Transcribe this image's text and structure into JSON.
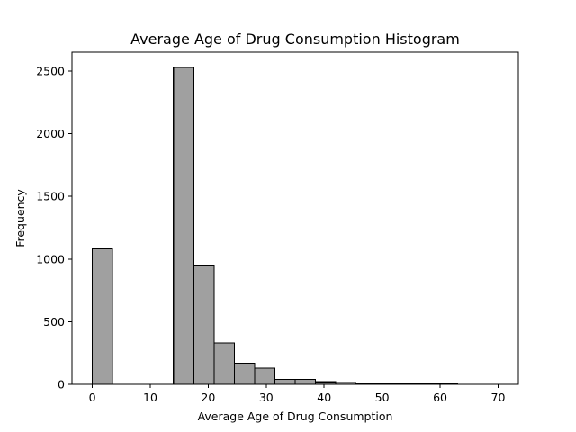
{
  "chart_data": {
    "type": "bar",
    "title": "Average Age of Drug Consumption Histogram",
    "xlabel": "Average Age of Drug Consumption",
    "ylabel": "Frequency",
    "xlim": [
      -3.5,
      73.5
    ],
    "ylim": [
      0,
      2650
    ],
    "x_ticks": [
      0,
      10,
      20,
      30,
      40,
      50,
      60,
      70
    ],
    "y_ticks": [
      0,
      500,
      1000,
      1500,
      2000,
      2500
    ],
    "bar_color": "#a0a0a0",
    "edge_color": "#000000",
    "bins": [
      {
        "start": 0.0,
        "end": 3.5,
        "value": 1080
      },
      {
        "start": 3.5,
        "end": 7.0,
        "value": 0
      },
      {
        "start": 7.0,
        "end": 10.5,
        "value": 0
      },
      {
        "start": 10.5,
        "end": 14.0,
        "value": 0
      },
      {
        "start": 14.0,
        "end": 17.5,
        "value": 2530
      },
      {
        "start": 17.5,
        "end": 21.0,
        "value": 950
      },
      {
        "start": 21.0,
        "end": 24.5,
        "value": 330
      },
      {
        "start": 24.5,
        "end": 28.0,
        "value": 170
      },
      {
        "start": 28.0,
        "end": 31.5,
        "value": 130
      },
      {
        "start": 31.5,
        "end": 35.0,
        "value": 40
      },
      {
        "start": 35.0,
        "end": 38.5,
        "value": 40
      },
      {
        "start": 38.5,
        "end": 42.0,
        "value": 20
      },
      {
        "start": 42.0,
        "end": 45.5,
        "value": 15
      },
      {
        "start": 45.5,
        "end": 49.0,
        "value": 8
      },
      {
        "start": 49.0,
        "end": 52.5,
        "value": 6
      },
      {
        "start": 52.5,
        "end": 56.0,
        "value": 4
      },
      {
        "start": 56.0,
        "end": 59.5,
        "value": 2
      },
      {
        "start": 59.5,
        "end": 63.0,
        "value": 6
      },
      {
        "start": 63.0,
        "end": 66.5,
        "value": 1
      },
      {
        "start": 66.5,
        "end": 70.0,
        "value": 1
      }
    ]
  }
}
